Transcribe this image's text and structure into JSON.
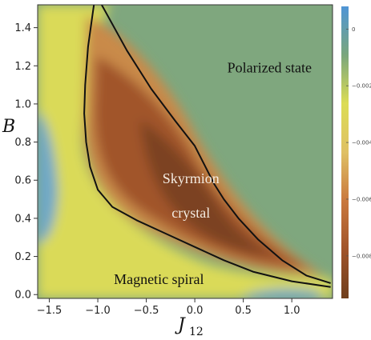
{
  "chart_data": {
    "type": "heatmap",
    "xlabel": {
      "main": "J",
      "sub": "12"
    },
    "ylabel": "B",
    "xlim": [
      -1.62,
      1.42
    ],
    "ylim": [
      -0.02,
      1.52
    ],
    "x_ticks": [
      -1.5,
      -1.0,
      -0.5,
      0.0,
      0.5,
      1.0
    ],
    "x_tick_labels": [
      "−1.5",
      "−1.0",
      "−0.5",
      "0.0",
      "0.5",
      "1.0"
    ],
    "y_ticks": [
      0.0,
      0.2,
      0.4,
      0.6,
      0.8,
      1.0,
      1.2,
      1.4
    ],
    "y_tick_labels": [
      "0.0",
      "0.2",
      "0.4",
      "0.6",
      "0.8",
      "1.0",
      "1.2",
      "1.4"
    ],
    "colorbar": {
      "range": [
        -0.0095,
        0.0008
      ],
      "ticks": [
        0,
        -0.002,
        -0.004,
        -0.006,
        -0.008
      ],
      "tick_labels": [
        "0",
        "−0.002",
        "−0.004",
        "−0.006",
        "−0.008"
      ],
      "colors": [
        "#6f3e1c",
        "#a0542a",
        "#c9783e",
        "#dfc065",
        "#dcdd55",
        "#7aa67c",
        "#4f95d6"
      ]
    },
    "region_labels": [
      {
        "text": "Polarized state",
        "x": 0.77,
        "y": 1.19,
        "light": false
      },
      {
        "text": "Skyrmion",
        "x": -0.04,
        "y": 0.61,
        "light": true
      },
      {
        "text": "crystal",
        "x": -0.04,
        "y": 0.43,
        "light": true
      },
      {
        "text": "Magnetic spiral",
        "x": -0.37,
        "y": 0.08,
        "light": false
      }
    ],
    "boundaries": [
      {
        "name": "",
        "points": [
          [
            -0.96,
            1.52
          ],
          [
            -0.7,
            1.28
          ],
          [
            -0.45,
            1.08
          ],
          [
            -0.2,
            0.91
          ],
          [
            0.0,
            0.78
          ],
          [
            0.1,
            0.68
          ],
          [
            0.2,
            0.58
          ],
          [
            0.3,
            0.5
          ],
          [
            0.45,
            0.4
          ],
          [
            0.65,
            0.29
          ],
          [
            0.9,
            0.18
          ],
          [
            1.15,
            0.1
          ],
          [
            1.4,
            0.06
          ]
        ]
      },
      {
        "name": "",
        "points": [
          [
            -1.04,
            1.52
          ],
          [
            -1.1,
            1.3
          ],
          [
            -1.13,
            1.1
          ],
          [
            -1.14,
            0.95
          ],
          [
            -1.12,
            0.8
          ],
          [
            -1.08,
            0.67
          ],
          [
            -1.0,
            0.55
          ],
          [
            -0.85,
            0.46
          ],
          [
            -0.6,
            0.39
          ],
          [
            -0.3,
            0.32
          ],
          [
            0.0,
            0.25
          ],
          [
            0.3,
            0.18
          ],
          [
            0.6,
            0.12
          ],
          [
            1.0,
            0.07
          ],
          [
            1.4,
            0.04
          ]
        ]
      }
    ]
  }
}
